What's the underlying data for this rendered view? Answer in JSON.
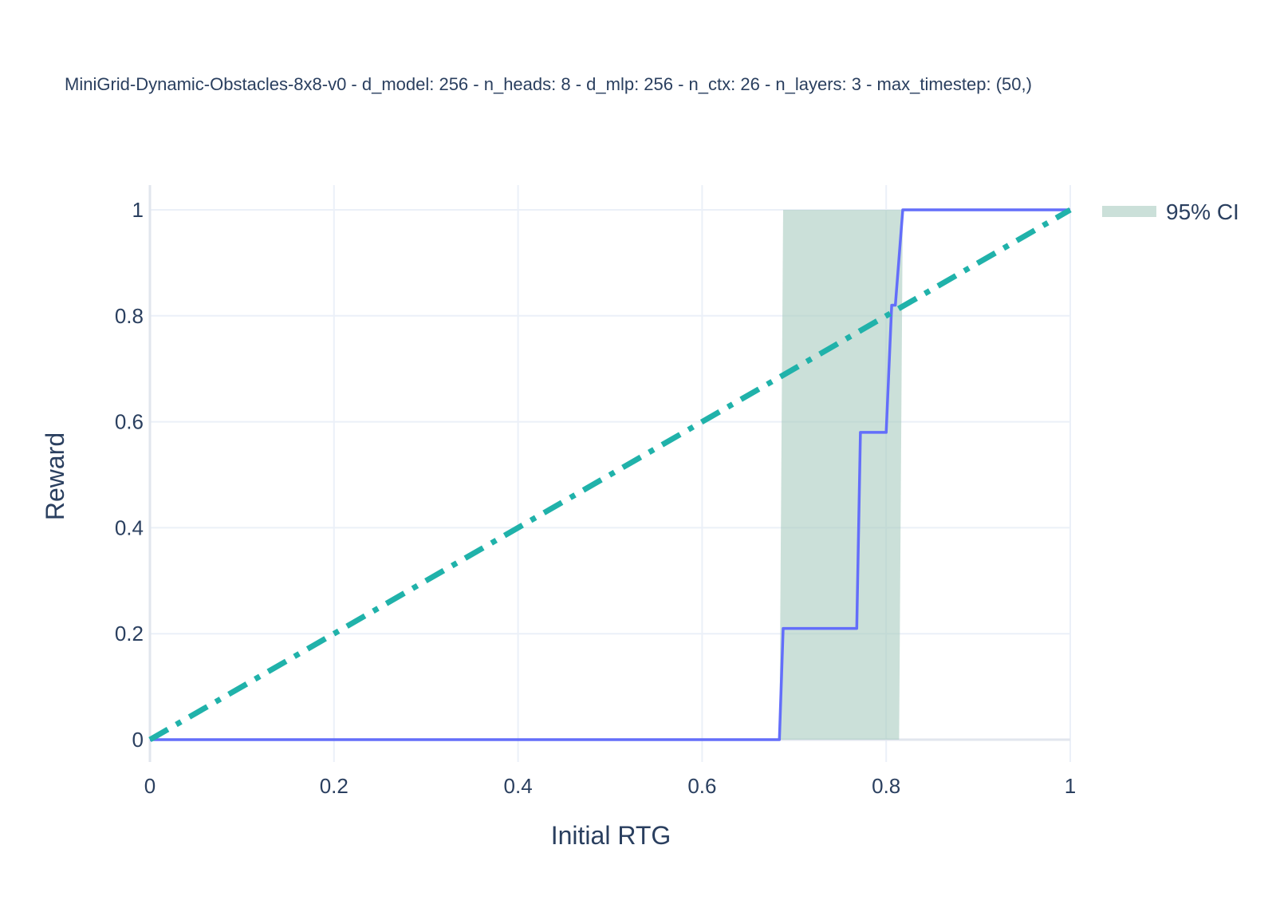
{
  "chart_data": {
    "type": "line",
    "title": "MiniGrid-Dynamic-Obstacles-8x8-v0 - d_model: 256 - n_heads: 8 - d_mlp: 256 - n_ctx: 26 - n_layers: 3 - max_timestep: (50,)",
    "xlabel": "Initial RTG",
    "ylabel": "Reward",
    "xlim": [
      0,
      1
    ],
    "ylim": [
      -0.045,
      1.05
    ],
    "grid": true,
    "legend_position": "top-right",
    "x_ticks": [
      {
        "value": 0,
        "label": "0"
      },
      {
        "value": 0.2,
        "label": "0.2"
      },
      {
        "value": 0.4,
        "label": "0.4"
      },
      {
        "value": 0.6,
        "label": "0.6"
      },
      {
        "value": 0.8,
        "label": "0.8"
      },
      {
        "value": 1,
        "label": "1"
      }
    ],
    "y_ticks": [
      {
        "value": 0,
        "label": "0"
      },
      {
        "value": 0.2,
        "label": "0.2"
      },
      {
        "value": 0.4,
        "label": "0.4"
      },
      {
        "value": 0.6,
        "label": "0.6"
      },
      {
        "value": 0.8,
        "label": "0.8"
      },
      {
        "value": 1,
        "label": "1"
      }
    ],
    "series": [
      {
        "name": "",
        "type": "line",
        "color": "#636efa",
        "x": [
          0,
          0.2,
          0.4,
          0.6,
          0.684,
          0.688,
          0.768,
          0.772,
          0.8,
          0.806,
          0.81,
          0.818,
          0.822,
          0.9,
          1.0
        ],
        "y": [
          0,
          0,
          0,
          0,
          0,
          0.21,
          0.21,
          0.58,
          0.58,
          0.82,
          0.82,
          1.0,
          1.0,
          1.0,
          1.0
        ]
      },
      {
        "name": "",
        "type": "line",
        "dash": "dashdot",
        "color": "#20b2aa",
        "x": [
          0,
          1
        ],
        "y": [
          0,
          1
        ]
      },
      {
        "name": "95% CI",
        "type": "area",
        "color": "#a8cbbf",
        "x": [
          0.688,
          0.684,
          0.814,
          0.818
        ],
        "y": [
          1.0,
          0,
          0,
          1.0
        ]
      }
    ]
  }
}
